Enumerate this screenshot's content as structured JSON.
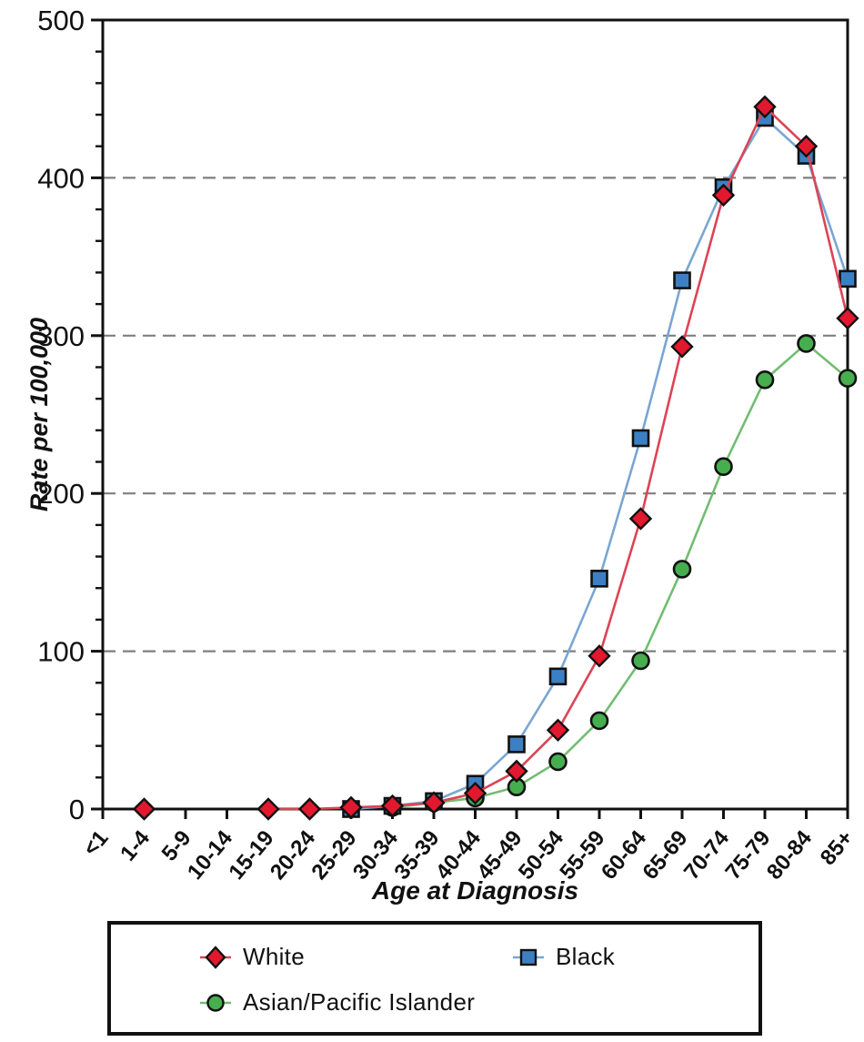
{
  "chart_data": {
    "type": "line",
    "title": "",
    "xlabel": "Age at Diagnosis",
    "ylabel": "Rate per 100,000",
    "ylim": [
      0,
      500
    ],
    "ytick_interval": 100,
    "yminor_interval": 20,
    "grid": "horizontal-dashed-at-100-200-300-400",
    "legend_position": "bottom-box",
    "categories": [
      "<1",
      "1-4",
      "5-9",
      "10-14",
      "15-19",
      "20-24",
      "25-29",
      "30-34",
      "35-39",
      "40-44",
      "45-49",
      "50-54",
      "55-59",
      "60-64",
      "65-69",
      "70-74",
      "75-79",
      "80-84",
      "85+"
    ],
    "series": [
      {
        "name": "Asian/Pacific Islander",
        "marker": "circle",
        "marker_color": "#46ae4e",
        "line_color": "#72bd72",
        "values": [
          null,
          null,
          null,
          null,
          null,
          null,
          null,
          1,
          4,
          7,
          14,
          30,
          56,
          94,
          152,
          217,
          272,
          295,
          273
        ]
      },
      {
        "name": "Black",
        "marker": "square",
        "marker_color": "#3c80c3",
        "line_color": "#7aa6d2",
        "values": [
          null,
          null,
          null,
          null,
          null,
          null,
          0,
          2,
          5,
          16,
          41,
          84,
          146,
          235,
          335,
          394,
          438,
          414,
          336
        ]
      },
      {
        "name": "White",
        "marker": "diamond",
        "marker_color": "#e1182e",
        "line_color": "#dc4455",
        "values": [
          null,
          0,
          null,
          null,
          0,
          0,
          1,
          2,
          4,
          10,
          24,
          50,
          97,
          184,
          293,
          389,
          445,
          420,
          311
        ]
      }
    ],
    "axis_color": "#111111",
    "grid_color": "#7f7f7f",
    "tick_label_color": "#111111"
  },
  "legend": {
    "white_label": "White",
    "black_label": "Black",
    "api_label": "Asian/Pacific Islander"
  }
}
